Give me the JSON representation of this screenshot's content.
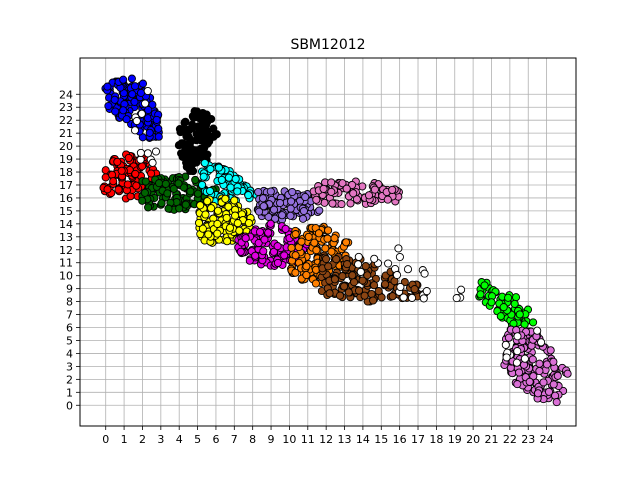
{
  "chart_data": {
    "type": "scatter",
    "title": "SBM12012",
    "xlabel": "",
    "ylabel": "",
    "xlim": [
      -1.4,
      25.6
    ],
    "ylim": [
      -1.6,
      26.8
    ],
    "xticks": [
      0,
      1,
      2,
      3,
      4,
      5,
      6,
      7,
      8,
      9,
      10,
      11,
      12,
      13,
      14,
      15,
      16,
      17,
      18,
      19,
      20,
      21,
      22,
      23,
      24
    ],
    "yticks": [
      0,
      1,
      2,
      3,
      4,
      5,
      6,
      7,
      8,
      9,
      10,
      11,
      12,
      13,
      14,
      15,
      16,
      17,
      18,
      19,
      20,
      21,
      22,
      23,
      24
    ],
    "grid": true,
    "legend": "none",
    "clusters": [
      {
        "color": "#0000ff",
        "polygon": [
          [
            -0.1,
            24.8
          ],
          [
            1.1,
            25.5
          ],
          [
            2.1,
            24.8
          ],
          [
            2.9,
            22.5
          ],
          [
            2.9,
            20.5
          ],
          [
            2.3,
            20.2
          ],
          [
            1.0,
            21.8
          ],
          [
            0.1,
            22.7
          ]
        ],
        "count": 140
      },
      {
        "color": "#000000",
        "polygon": [
          [
            4.0,
            21.4
          ],
          [
            4.9,
            22.8
          ],
          [
            5.6,
            22.7
          ],
          [
            6.1,
            20.8
          ],
          [
            5.8,
            19.2
          ],
          [
            4.7,
            17.8
          ],
          [
            4.3,
            18.6
          ],
          [
            3.9,
            20.2
          ]
        ],
        "count": 110
      },
      {
        "color": "#ff0000",
        "polygon": [
          [
            -0.2,
            18.4
          ],
          [
            0.8,
            19.4
          ],
          [
            2.2,
            19.2
          ],
          [
            2.8,
            17.8
          ],
          [
            2.4,
            16.1
          ],
          [
            1.2,
            15.9
          ],
          [
            -0.1,
            16.3
          ]
        ],
        "count": 110
      },
      {
        "color": "#006400",
        "polygon": [
          [
            1.8,
            17.4
          ],
          [
            4.3,
            17.8
          ],
          [
            6.0,
            16.9
          ],
          [
            6.1,
            15.9
          ],
          [
            4.4,
            15.1
          ],
          [
            2.8,
            14.9
          ],
          [
            1.8,
            15.5
          ]
        ],
        "count": 110
      },
      {
        "color": "#00ffff",
        "polygon": [
          [
            5.2,
            18.8
          ],
          [
            6.4,
            18.4
          ],
          [
            7.6,
            17.4
          ],
          [
            8.3,
            16.1
          ],
          [
            7.2,
            15.2
          ],
          [
            5.8,
            15.8
          ],
          [
            5.1,
            16.9
          ]
        ],
        "count": 90
      },
      {
        "color": "#ffff00",
        "polygon": [
          [
            5.0,
            15.6
          ],
          [
            6.2,
            16.2
          ],
          [
            7.6,
            15.6
          ],
          [
            8.0,
            14.2
          ],
          [
            7.6,
            12.8
          ],
          [
            6.1,
            12.3
          ],
          [
            5.1,
            12.8
          ]
        ],
        "count": 140
      },
      {
        "color": "#9370db",
        "polygon": [
          [
            8.3,
            16.6
          ],
          [
            9.6,
            16.6
          ],
          [
            11.5,
            16.2
          ],
          [
            11.8,
            15.0
          ],
          [
            10.5,
            14.2
          ],
          [
            8.8,
            14.1
          ],
          [
            8.2,
            15.0
          ]
        ],
        "count": 110
      },
      {
        "color": "#e377c2",
        "polygon": [
          [
            11.2,
            16.9
          ],
          [
            12.4,
            17.4
          ],
          [
            14.3,
            17.3
          ],
          [
            16.1,
            16.5
          ],
          [
            15.8,
            15.6
          ],
          [
            13.2,
            15.5
          ],
          [
            11.2,
            15.6
          ]
        ],
        "count": 90
      },
      {
        "color": "#e000e0",
        "polygon": [
          [
            7.2,
            13.1
          ],
          [
            8.7,
            14.1
          ],
          [
            10.3,
            13.9
          ],
          [
            11.1,
            12.5
          ],
          [
            10.6,
            11.0
          ],
          [
            8.8,
            10.6
          ],
          [
            7.2,
            11.5
          ]
        ],
        "count": 130
      },
      {
        "color": "#ff8000",
        "polygon": [
          [
            10.2,
            13.4
          ],
          [
            11.6,
            14.0
          ],
          [
            13.3,
            12.6
          ],
          [
            12.9,
            10.8
          ],
          [
            11.7,
            9.3
          ],
          [
            10.2,
            9.8
          ],
          [
            9.9,
            11.6
          ]
        ],
        "count": 140
      },
      {
        "color": "#8b4513",
        "polygon": [
          [
            11.7,
            11.7
          ],
          [
            13.1,
            11.6
          ],
          [
            15.3,
            10.7
          ],
          [
            17.0,
            9.5
          ],
          [
            17.2,
            8.4
          ],
          [
            15.8,
            7.9
          ],
          [
            13.3,
            8.0
          ],
          [
            11.7,
            8.6
          ]
        ],
        "count": 140
      },
      {
        "color": "#00ff00",
        "polygon": [
          [
            20.1,
            9.8
          ],
          [
            21.2,
            9.2
          ],
          [
            22.4,
            8.4
          ],
          [
            23.3,
            7.4
          ],
          [
            23.3,
            6.1
          ],
          [
            22.1,
            6.2
          ],
          [
            21.1,
            7.3
          ],
          [
            20.3,
            8.3
          ]
        ],
        "count": 70
      },
      {
        "color": "#da70d6",
        "polygon": [
          [
            21.9,
            6.3
          ],
          [
            23.3,
            6.2
          ],
          [
            24.1,
            4.6
          ],
          [
            25.2,
            2.6
          ],
          [
            24.9,
            0.2
          ],
          [
            23.9,
            0.1
          ],
          [
            22.6,
            1.1
          ],
          [
            21.7,
            3.1
          ],
          [
            21.6,
            4.8
          ]
        ],
        "count": 170
      },
      {
        "color": "#ffffff",
        "polygon": [
          [
            1.2,
            19.6
          ],
          [
            3.6,
            19.6
          ],
          [
            4.4,
            18.8
          ],
          [
            3.2,
            18.2
          ],
          [
            1.4,
            18.8
          ]
        ],
        "count": 6
      },
      {
        "color": "#ffffff",
        "polygon": [
          [
            12.2,
            12.6
          ],
          [
            16.0,
            12.4
          ],
          [
            18.0,
            9.4
          ],
          [
            21.0,
            10.2
          ],
          [
            20.8,
            9.0
          ],
          [
            18.4,
            7.8
          ],
          [
            16.8,
            7.2
          ],
          [
            14.0,
            9.6
          ]
        ],
        "count": 24
      },
      {
        "color": "#ffffff",
        "polygon": [
          [
            21.6,
            5.2
          ],
          [
            23.8,
            7.4
          ],
          [
            24.0,
            5.0
          ],
          [
            22.2,
            2.6
          ],
          [
            21.2,
            3.4
          ]
        ],
        "count": 10
      },
      {
        "color": "#ffffff",
        "polygon": [
          [
            2.0,
            24.6
          ],
          [
            2.4,
            24.2
          ],
          [
            2.1,
            20.5
          ],
          [
            1.2,
            21.6
          ]
        ],
        "count": 6
      }
    ]
  }
}
